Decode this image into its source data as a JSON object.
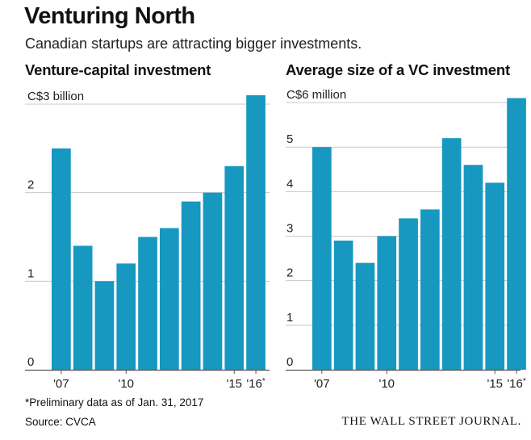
{
  "header": {
    "title": "Venturing North",
    "subtitle": "Canadian startups are attracting bigger investments."
  },
  "footer": {
    "note": "*Preliminary data as of Jan. 31, 2017",
    "source": "Source: CVCA",
    "publisher": "THE WALL STREET JOURNAL."
  },
  "colors": {
    "bar": "#1798c1",
    "grid": "#c8c8c8",
    "axis": "#555555"
  },
  "chart_data": [
    {
      "type": "bar",
      "title": "Venture-capital investment",
      "categories": [
        "2007",
        "2008",
        "2009",
        "2010",
        "2011",
        "2012",
        "2013",
        "2014",
        "2015",
        "2016*"
      ],
      "values": [
        2.5,
        1.4,
        1.0,
        1.2,
        1.5,
        1.6,
        1.9,
        2.0,
        2.3,
        3.1
      ],
      "ylim": [
        0,
        3.2
      ],
      "yticks": [
        0,
        1,
        2,
        3
      ],
      "ytick_labels": [
        "0",
        "1",
        "2",
        "C$3 billion"
      ],
      "xtick_labels": [
        {
          "index": 0,
          "label": "'07"
        },
        {
          "index": 3,
          "label": "'10"
        },
        {
          "index": 8,
          "label": "'15"
        },
        {
          "index": 9,
          "label": "'16*"
        }
      ],
      "grid": true
    },
    {
      "type": "bar",
      "title": "Average size of a VC investment",
      "categories": [
        "2007",
        "2008",
        "2009",
        "2010",
        "2011",
        "2012",
        "2013",
        "2014",
        "2015",
        "2016*"
      ],
      "values": [
        5.0,
        2.9,
        2.4,
        3.0,
        3.4,
        3.6,
        5.2,
        4.6,
        4.2,
        6.1
      ],
      "ylim": [
        0,
        6.2
      ],
      "yticks": [
        0,
        1,
        2,
        3,
        4,
        5,
        6
      ],
      "ytick_labels": [
        "0",
        "1",
        "2",
        "3",
        "4",
        "5",
        "C$6 million"
      ],
      "xtick_labels": [
        {
          "index": 0,
          "label": "'07"
        },
        {
          "index": 3,
          "label": "'10"
        },
        {
          "index": 8,
          "label": "'15"
        },
        {
          "index": 9,
          "label": "'16*"
        }
      ],
      "grid": true
    }
  ]
}
